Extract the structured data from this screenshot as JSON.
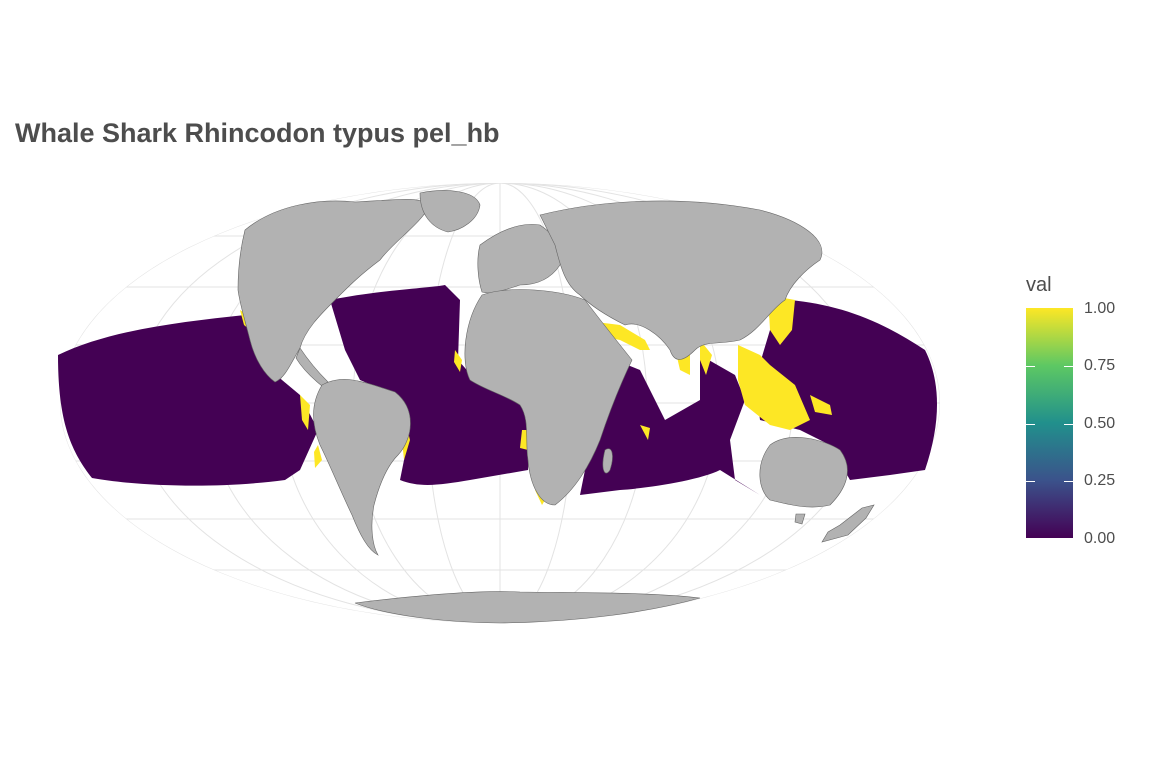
{
  "title": "Whale Shark Rhincodon typus pel_hb",
  "legend": {
    "title": "val",
    "ticks": [
      "1.00",
      "0.75",
      "0.50",
      "0.25",
      "0.00"
    ],
    "tick_values": [
      1.0,
      0.75,
      0.5,
      0.25,
      0.0
    ],
    "scale": "viridis",
    "colors": {
      "high": "#FDE725",
      "low": "#440154"
    }
  },
  "map": {
    "projection": "Mollweide",
    "ocean_fill": "#440154",
    "habitat_fill": "#FDE725",
    "land_fill": "#B2B2B2",
    "graticule_color": "#E0E0E0"
  }
}
